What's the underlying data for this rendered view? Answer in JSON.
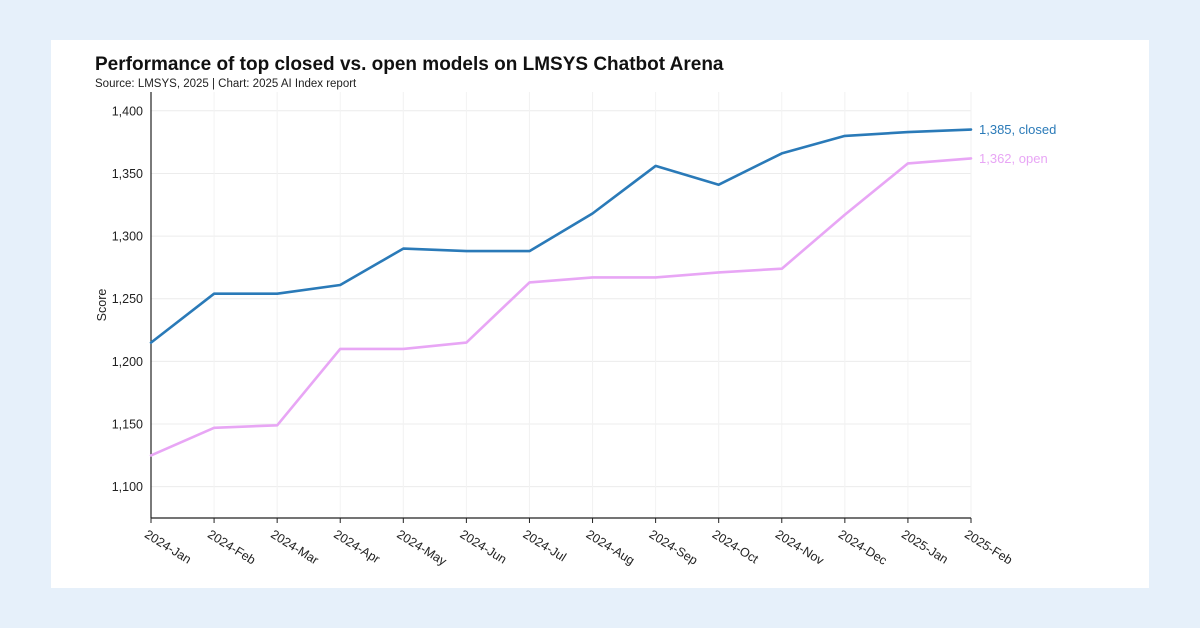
{
  "chart_data": {
    "type": "line",
    "title": "Performance of top closed vs. open models on LMSYS Chatbot Arena",
    "subtitle": "Source: LMSYS, 2025 | Chart: 2025 AI Index report",
    "ylabel": "Score",
    "xlabel": "",
    "ylim": [
      1075,
      1415
    ],
    "yticks": [
      1100,
      1150,
      1200,
      1250,
      1300,
      1350,
      1400
    ],
    "ytick_labels": [
      "1,100",
      "1,150",
      "1,200",
      "1,250",
      "1,300",
      "1,350",
      "1,400"
    ],
    "grid": true,
    "legend": "none",
    "categories": [
      "2024-Jan",
      "2024-Feb",
      "2024-Mar",
      "2024-Apr",
      "2024-May",
      "2024-Jun",
      "2024-Jul",
      "2024-Aug",
      "2024-Sep",
      "2024-Oct",
      "2024-Nov",
      "2024-Dec",
      "2025-Jan",
      "2025-Feb"
    ],
    "series": [
      {
        "key": "closed",
        "color": "#2a7ab8",
        "end_label": "1,385, closed",
        "values": [
          1215,
          1254,
          1254,
          1261,
          1290,
          1288,
          1288,
          1318,
          1356,
          1341,
          1366,
          1380,
          1383,
          1385
        ]
      },
      {
        "key": "open",
        "color": "#e8a6f5",
        "end_label": "1,362, open",
        "values": [
          1125,
          1147,
          1149,
          1210,
          1210,
          1215,
          1263,
          1267,
          1267,
          1271,
          1274,
          1317,
          1358,
          1362
        ]
      }
    ]
  }
}
